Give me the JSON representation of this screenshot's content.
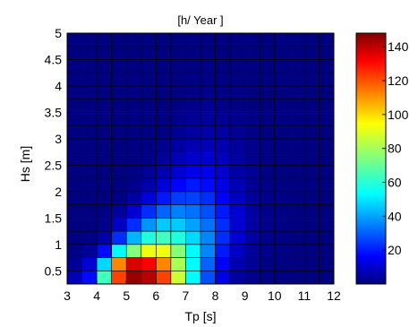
{
  "chart_data": {
    "type": "heatmap",
    "title": "[h/ Year ]",
    "xlabel": "Tp [s]",
    "ylabel": "Hs [m]",
    "x_ticks": [
      3,
      4,
      5,
      6,
      7,
      8,
      9,
      10,
      11,
      12
    ],
    "y_ticks": [
      0.5,
      1,
      1.5,
      2,
      2.5,
      3,
      3.5,
      4,
      4.5,
      5
    ],
    "x_tick_labels": [
      "3",
      "4",
      "5",
      "6",
      "7",
      "8",
      "9",
      "10",
      "11",
      "12"
    ],
    "y_tick_labels": [
      "0.5",
      "1",
      "1.5",
      "2",
      "2.5",
      "3",
      "3.5",
      "4",
      "4.5",
      "5"
    ],
    "xlim": [
      3,
      12
    ],
    "ylim": [
      0.25,
      5
    ],
    "x_bin_width": 0.5,
    "y_bin_width": 0.25,
    "y_bin_start": 0.25,
    "colormap": "jet",
    "clim": [
      0,
      148
    ],
    "colorbar_ticks": [
      20,
      40,
      60,
      80,
      100,
      120,
      140
    ],
    "colorbar_tick_labels": [
      "20",
      "40",
      "60",
      "80",
      "100",
      "120",
      "140"
    ],
    "grid_color": "#000000",
    "values": [
      [
        8,
        20,
        65,
        120,
        145,
        140,
        120,
        85,
        55,
        30,
        15,
        5,
        2,
        1,
        0,
        0,
        0,
        0
      ],
      [
        3,
        12,
        50,
        110,
        135,
        130,
        110,
        80,
        55,
        33,
        18,
        7,
        3,
        1,
        0,
        0,
        0,
        0
      ],
      [
        1,
        4,
        20,
        55,
        75,
        90,
        90,
        75,
        55,
        38,
        22,
        10,
        4,
        2,
        1,
        0,
        0,
        0
      ],
      [
        0,
        1,
        6,
        25,
        45,
        60,
        65,
        60,
        50,
        38,
        25,
        12,
        5,
        2,
        1,
        0,
        0,
        0
      ],
      [
        0,
        0,
        2,
        10,
        25,
        40,
        48,
        48,
        42,
        35,
        25,
        12,
        5,
        2,
        1,
        0,
        0,
        0
      ],
      [
        0,
        0,
        1,
        4,
        12,
        25,
        33,
        37,
        35,
        30,
        22,
        12,
        5,
        2,
        1,
        0,
        0,
        0
      ],
      [
        0,
        0,
        0,
        1,
        5,
        13,
        22,
        27,
        28,
        25,
        18,
        10,
        4,
        2,
        1,
        0,
        0,
        0
      ],
      [
        0,
        0,
        0,
        0,
        2,
        6,
        13,
        19,
        22,
        20,
        15,
        8,
        3,
        1,
        0,
        0,
        0,
        0
      ],
      [
        0,
        0,
        0,
        0,
        1,
        3,
        7,
        12,
        16,
        16,
        12,
        6,
        3,
        1,
        0,
        0,
        0,
        0
      ],
      [
        0,
        0,
        0,
        0,
        0,
        1,
        4,
        8,
        11,
        12,
        9,
        5,
        2,
        1,
        0,
        0,
        0,
        0
      ],
      [
        0,
        0,
        0,
        0,
        0,
        0,
        2,
        5,
        7,
        8,
        7,
        4,
        2,
        1,
        0,
        0,
        0,
        0
      ],
      [
        0,
        0,
        0,
        0,
        0,
        0,
        1,
        3,
        5,
        6,
        5,
        3,
        1,
        0,
        0,
        0,
        0,
        0
      ],
      [
        0,
        0,
        0,
        0,
        0,
        0,
        0,
        2,
        3,
        4,
        3,
        2,
        1,
        0,
        0,
        0,
        0,
        0
      ],
      [
        0,
        0,
        0,
        0,
        0,
        0,
        0,
        1,
        2,
        3,
        2,
        1,
        0,
        0,
        0,
        0,
        0,
        0
      ],
      [
        0,
        0,
        0,
        0,
        0,
        0,
        0,
        0,
        1,
        2,
        1,
        1,
        0,
        0,
        0,
        0,
        0,
        0
      ],
      [
        0,
        0,
        0,
        0,
        0,
        0,
        0,
        0,
        1,
        1,
        1,
        0,
        0,
        0,
        0,
        0,
        0,
        0
      ],
      [
        0,
        0,
        0,
        0,
        0,
        0,
        0,
        0,
        0,
        1,
        0,
        0,
        0,
        0,
        0,
        0,
        0,
        0
      ],
      [
        0,
        0,
        0,
        0,
        0,
        0,
        0,
        0,
        0,
        0,
        0,
        0,
        0,
        0,
        0,
        0,
        0,
        0
      ],
      [
        0,
        0,
        0,
        0,
        0,
        0,
        0,
        0,
        0,
        0,
        0,
        0,
        0,
        0,
        0,
        0,
        0,
        0
      ]
    ]
  }
}
